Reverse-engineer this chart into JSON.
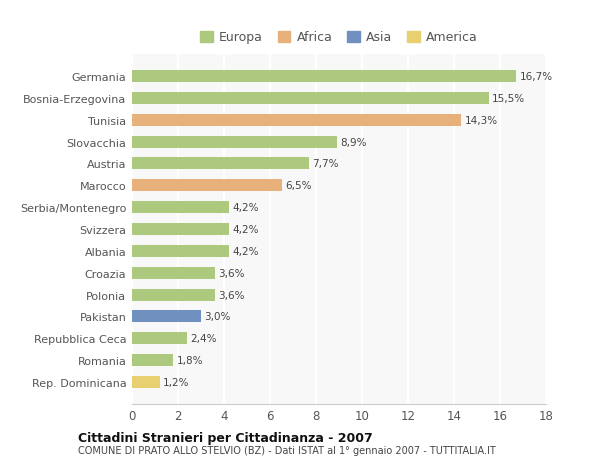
{
  "countries": [
    "Germania",
    "Bosnia-Erzegovina",
    "Tunisia",
    "Slovacchia",
    "Austria",
    "Marocco",
    "Serbia/Montenegro",
    "Svizzera",
    "Albania",
    "Croazia",
    "Polonia",
    "Pakistan",
    "Repubblica Ceca",
    "Romania",
    "Rep. Dominicana"
  ],
  "values": [
    16.7,
    15.5,
    14.3,
    8.9,
    7.7,
    6.5,
    4.2,
    4.2,
    4.2,
    3.6,
    3.6,
    3.0,
    2.4,
    1.8,
    1.2
  ],
  "labels": [
    "16,7%",
    "15,5%",
    "14,3%",
    "8,9%",
    "7,7%",
    "6,5%",
    "4,2%",
    "4,2%",
    "4,2%",
    "3,6%",
    "3,6%",
    "3,0%",
    "2,4%",
    "1,8%",
    "1,2%"
  ],
  "colors": [
    "#adc97e",
    "#adc97e",
    "#e8b07a",
    "#adc97e",
    "#adc97e",
    "#e8b07a",
    "#adc97e",
    "#adc97e",
    "#adc97e",
    "#adc97e",
    "#adc97e",
    "#7090c0",
    "#adc97e",
    "#adc97e",
    "#e8d070"
  ],
  "legend_labels": [
    "Europa",
    "Africa",
    "Asia",
    "America"
  ],
  "legend_colors": [
    "#adc97e",
    "#e8b07a",
    "#7090c0",
    "#e8d070"
  ],
  "title": "Cittadini Stranieri per Cittadinanza - 2007",
  "subtitle": "COMUNE DI PRATO ALLO STELVIO (BZ) - Dati ISTAT al 1° gennaio 2007 - TUTTITALIA.IT",
  "xlim": [
    0,
    18
  ],
  "xticks": [
    0,
    2,
    4,
    6,
    8,
    10,
    12,
    14,
    16,
    18
  ],
  "background_color": "#ffffff",
  "plot_bg_color": "#f8f8f8",
  "grid_color": "#ffffff"
}
